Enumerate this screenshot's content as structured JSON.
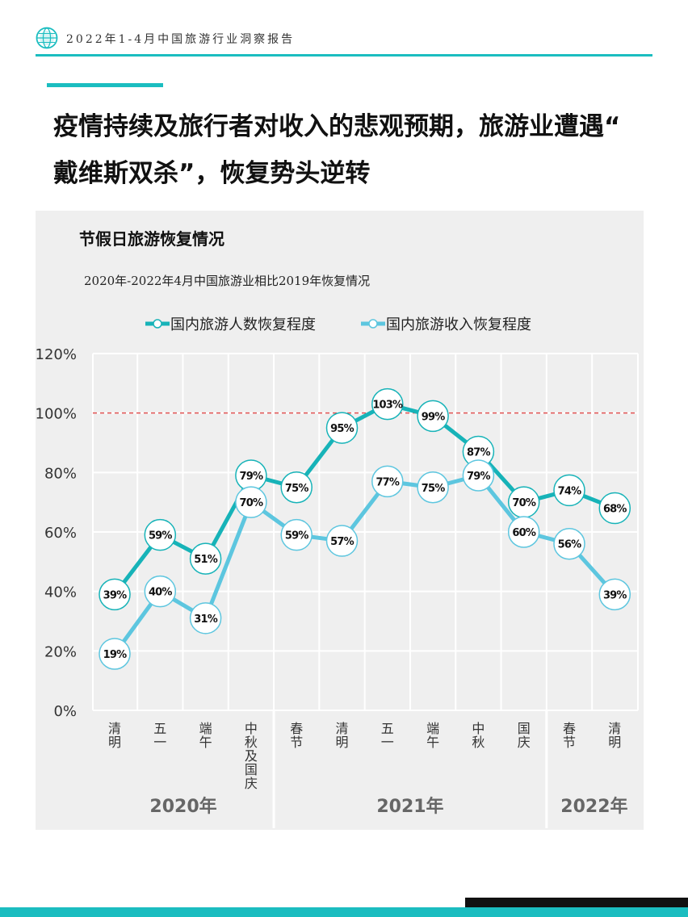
{
  "header": {
    "text": "2022年1-4月中国旅游行业洞察报告",
    "logo": "globe-icon"
  },
  "main_title_line1": "疫情持续及旅行者对收入的悲观预期，旅游业遭遇“",
  "main_title_line2": "戴维斯双杀”，恢复势头逆转",
  "chart_title": "节假日旅游恢复情况",
  "chart_subtitle": "2020年-2022年4月中国旅游业相比2019年恢复情况",
  "colors": {
    "accent": "#1bbdc0",
    "series1": "#17b3b8",
    "series2": "#5dc6df",
    "reference": "#e05050",
    "panel": "#efefef"
  },
  "chart_data": {
    "type": "line",
    "title": "节假日旅游恢复情况",
    "subtitle": "2020年-2022年4月中国旅游业相比2019年恢复情况",
    "ylim": [
      0,
      120
    ],
    "yticks": [
      "0%",
      "20%",
      "40%",
      "60%",
      "80%",
      "100%",
      "120%"
    ],
    "grid": true,
    "legend_position": "top",
    "reference_line": 100,
    "categories": [
      "清明",
      "五一",
      "端午",
      "中秋及国庆",
      "春节",
      "清明",
      "五一",
      "端午",
      "中秋",
      "国庆",
      "春节",
      "清明"
    ],
    "groups": [
      {
        "label": "2020年",
        "count": 4
      },
      {
        "label": "2021年",
        "count": 6
      },
      {
        "label": "2022年",
        "count": 2
      }
    ],
    "series": [
      {
        "name": "国内旅游人数恢复程度",
        "values": [
          39,
          59,
          51,
          79,
          75,
          95,
          103,
          99,
          87,
          70,
          74,
          68
        ]
      },
      {
        "name": "国内旅游收入恢复程度",
        "values": [
          19,
          40,
          31,
          70,
          59,
          57,
          77,
          75,
          79,
          60,
          56,
          39
        ]
      }
    ]
  }
}
